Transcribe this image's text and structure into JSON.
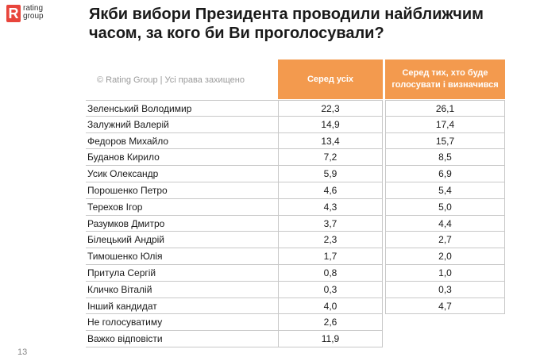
{
  "logo": {
    "mark": "R",
    "line1": "rating",
    "line2": "group"
  },
  "title": "Якби вибори Президента проводили найближчим часом, за кого би Ви проголосували?",
  "copyright": "© Rating Group | Усі права захищено",
  "page_number": "13",
  "colors": {
    "header_bg": "#f39a4e",
    "logo_red": "#e8453c"
  },
  "chart_data": {
    "type": "table",
    "title": "Якби вибори Президента проводили найближчим часом, за кого би Ви проголосували?",
    "columns": [
      "Серед усіх",
      "Серед тих, хто буде голосувати і визначився"
    ],
    "rows": [
      {
        "name": "Зеленський Володимир",
        "all": "22,3",
        "decided": "26,1"
      },
      {
        "name": "Залужний Валерій",
        "all": "14,9",
        "decided": "17,4"
      },
      {
        "name": "Федоров Михайло",
        "all": "13,4",
        "decided": "15,7"
      },
      {
        "name": "Буданов Кирило",
        "all": "7,2",
        "decided": "8,5"
      },
      {
        "name": "Усик Олександр",
        "all": "5,9",
        "decided": "6,9"
      },
      {
        "name": "Порошенко Петро",
        "all": "4,6",
        "decided": "5,4"
      },
      {
        "name": "Терехов Ігор",
        "all": "4,3",
        "decided": "5,0"
      },
      {
        "name": "Разумков Дмитро",
        "all": "3,7",
        "decided": "4,4"
      },
      {
        "name": "Білецький Андрій",
        "all": "2,3",
        "decided": "2,7"
      },
      {
        "name": "Тимошенко Юлія",
        "all": "1,7",
        "decided": "2,0"
      },
      {
        "name": "Притула Сергій",
        "all": "0,8",
        "decided": "1,0"
      },
      {
        "name": "Кличко Віталій",
        "all": "0,3",
        "decided": "0,3"
      },
      {
        "name": "Інший кандидат",
        "all": "4,0",
        "decided": "4,7"
      },
      {
        "name": "Не голосуватиму",
        "all": "2,6",
        "decided": null
      },
      {
        "name": "Важко відповісти",
        "all": "11,9",
        "decided": null
      }
    ]
  }
}
